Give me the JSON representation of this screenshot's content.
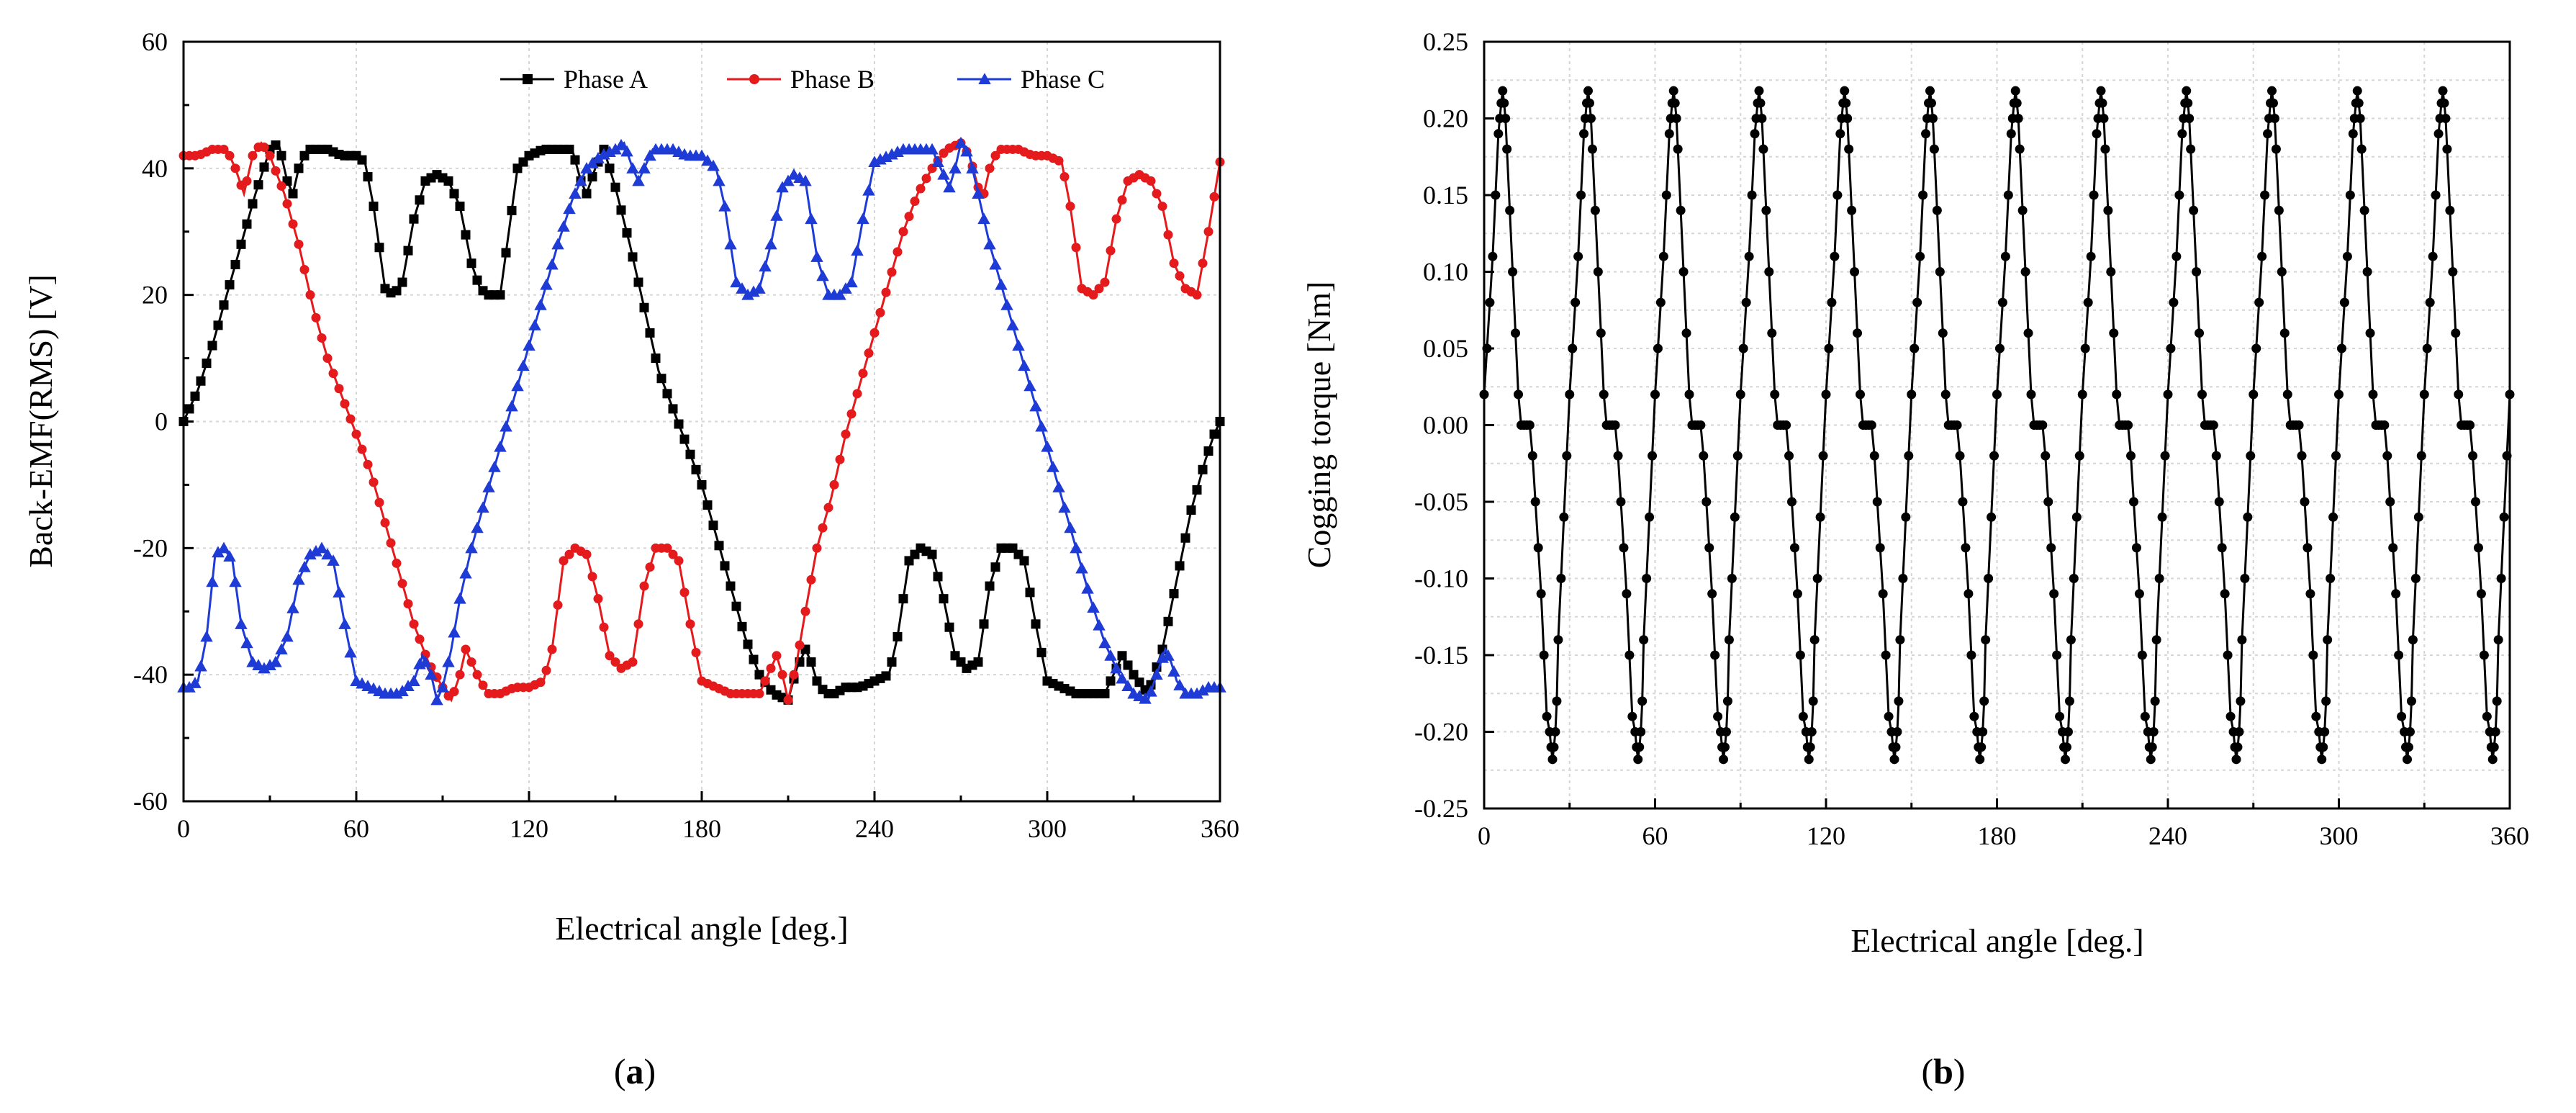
{
  "figure": {
    "caption_a": "a",
    "caption_b": "b"
  },
  "chart_data": [
    {
      "id": "a",
      "type": "line",
      "title": "",
      "xlabel": "Electrical angle [deg.]",
      "ylabel": "Back-EMF(RMS) [V]",
      "xlim": [
        0,
        360
      ],
      "ylim": [
        -60,
        60
      ],
      "xticks": [
        0,
        60,
        120,
        180,
        240,
        300,
        360
      ],
      "yticks": [
        -60,
        -40,
        -20,
        0,
        20,
        40,
        60
      ],
      "grid": true,
      "legend": "top-right, horizontal",
      "series": [
        {
          "name": "Phase A",
          "color": "#000000",
          "marker": "square",
          "x": [
            0,
            2,
            5,
            10,
            15,
            20,
            25,
            30,
            33,
            36,
            38,
            40,
            43,
            46,
            50,
            55,
            60,
            63,
            66,
            70,
            73,
            76,
            80,
            84,
            88,
            92,
            96,
            100,
            103,
            106,
            110,
            113,
            116,
            120,
            125,
            130,
            135,
            138,
            140,
            143,
            146,
            150,
            155,
            160,
            165,
            170,
            175,
            180,
            185,
            190,
            195,
            200,
            205,
            210,
            213,
            216,
            218,
            220,
            223,
            226,
            230,
            235,
            240,
            245,
            248,
            252,
            256,
            260,
            264,
            268,
            272,
            276,
            280,
            284,
            288,
            292,
            296,
            300,
            305,
            310,
            315,
            320,
            323,
            326,
            330,
            335,
            340,
            345,
            350,
            355,
            358,
            360
          ],
          "y": [
            0,
            2,
            5,
            12,
            20,
            28,
            36,
            43,
            44,
            38,
            36,
            40,
            43,
            43,
            43,
            42,
            42,
            41,
            34,
            21,
            20,
            22,
            32,
            38,
            39,
            38,
            34,
            25,
            21,
            20,
            20,
            30,
            40,
            42,
            43,
            43,
            43,
            38,
            36,
            40,
            43,
            37,
            28,
            18,
            8,
            2,
            -4,
            -10,
            -18,
            -26,
            -34,
            -40,
            -43,
            -44,
            -39,
            -36,
            -38,
            -41,
            -43,
            -43,
            -42,
            -42,
            -41,
            -40,
            -34,
            -22,
            -20,
            -21,
            -28,
            -37,
            -39,
            -38,
            -26,
            -20,
            -20,
            -22,
            -32,
            -41,
            -42,
            -43,
            -43,
            -43,
            -40,
            -37,
            -40,
            -43,
            -36,
            -25,
            -14,
            -6,
            -2,
            0
          ]
        },
        {
          "name": "Phase B",
          "color": "#e41a1c",
          "marker": "circle",
          "x": [
            0,
            2,
            5,
            10,
            15,
            18,
            21,
            24,
            27,
            30,
            35,
            40,
            45,
            50,
            55,
            60,
            65,
            70,
            75,
            80,
            85,
            90,
            93,
            96,
            98,
            100,
            103,
            106,
            110,
            115,
            120,
            125,
            128,
            132,
            136,
            140,
            144,
            148,
            152,
            156,
            160,
            164,
            168,
            172,
            176,
            180,
            185,
            190,
            195,
            200,
            203,
            206,
            208,
            210,
            213,
            216,
            220,
            225,
            230,
            235,
            240,
            245,
            250,
            255,
            260,
            265,
            270,
            273,
            276,
            278,
            280,
            283,
            286,
            290,
            295,
            300,
            305,
            308,
            312,
            316,
            320,
            324,
            328,
            332,
            336,
            340,
            344,
            348,
            352,
            356,
            360
          ],
          "y": [
            42,
            42,
            42,
            43,
            43,
            40,
            36,
            42,
            44,
            42,
            36,
            28,
            18,
            10,
            4,
            -2,
            -8,
            -16,
            -24,
            -32,
            -38,
            -42,
            -44,
            -40,
            -36,
            -38,
            -41,
            -43,
            -43,
            -42,
            -42,
            -41,
            -36,
            -22,
            -20,
            -21,
            -28,
            -37,
            -39,
            -38,
            -26,
            -20,
            -20,
            -22,
            -32,
            -41,
            -42,
            -43,
            -43,
            -43,
            -40,
            -37,
            -40,
            -44,
            -38,
            -30,
            -20,
            -12,
            -2,
            6,
            14,
            22,
            30,
            36,
            40,
            43,
            44,
            42,
            37,
            36,
            40,
            43,
            43,
            43,
            42,
            42,
            41,
            34,
            21,
            20,
            22,
            32,
            38,
            39,
            38,
            34,
            25,
            21,
            20,
            30,
            41
          ]
        },
        {
          "name": "Phase C",
          "color": "#1f3bd6",
          "marker": "triangle",
          "x": [
            0,
            2,
            5,
            8,
            11,
            14,
            17,
            20,
            24,
            28,
            32,
            36,
            40,
            44,
            48,
            52,
            56,
            60,
            65,
            70,
            75,
            80,
            83,
            86,
            88,
            90,
            93,
            96,
            100,
            105,
            110,
            115,
            120,
            125,
            130,
            135,
            140,
            145,
            150,
            153,
            156,
            158,
            160,
            163,
            166,
            170,
            175,
            180,
            185,
            188,
            192,
            196,
            200,
            204,
            208,
            212,
            216,
            220,
            224,
            228,
            232,
            236,
            240,
            245,
            250,
            255,
            260,
            263,
            266,
            268,
            270,
            273,
            276,
            280,
            285,
            290,
            295,
            300,
            305,
            310,
            315,
            320,
            325,
            330,
            335,
            338,
            341,
            343,
            345,
            348,
            352,
            356,
            360
          ],
          "y": [
            -42,
            -42,
            -41,
            -34,
            -21,
            -20,
            -22,
            -32,
            -38,
            -39,
            -38,
            -34,
            -25,
            -21,
            -20,
            -22,
            -32,
            -41,
            -42,
            -43,
            -43,
            -41,
            -37,
            -40,
            -44,
            -42,
            -36,
            -28,
            -20,
            -12,
            -4,
            4,
            12,
            20,
            28,
            35,
            40,
            42,
            43,
            44,
            40,
            38,
            40,
            43,
            43,
            43,
            42,
            42,
            40,
            34,
            22,
            20,
            21,
            28,
            37,
            39,
            38,
            26,
            20,
            20,
            22,
            32,
            41,
            42,
            43,
            43,
            43,
            40,
            37,
            40,
            44,
            42,
            36,
            28,
            20,
            12,
            4,
            -4,
            -12,
            -20,
            -28,
            -35,
            -40,
            -43,
            -44,
            -40,
            -36,
            -38,
            -41,
            -43,
            -43,
            -42,
            -42
          ]
        }
      ]
    },
    {
      "id": "b",
      "type": "line",
      "title": "",
      "xlabel": "Electrical angle [deg.]",
      "ylabel": "Cogging torque [Nm]",
      "xlim": [
        0,
        360
      ],
      "ylim": [
        -0.25,
        0.25
      ],
      "xticks": [
        0,
        60,
        120,
        180,
        240,
        300,
        360
      ],
      "yticks": [
        -0.25,
        -0.2,
        -0.15,
        -0.1,
        -0.05,
        0.0,
        0.05,
        0.1,
        0.15,
        0.2,
        0.25
      ],
      "grid": true,
      "period_deg": 30,
      "series": [
        {
          "name": "Cogging torque",
          "color": "#000000",
          "marker": "circle",
          "x": [
            0,
            1,
            2,
            3,
            4,
            5,
            5.5,
            6,
            6.5,
            7,
            7.5,
            8,
            9,
            10,
            11,
            12,
            13,
            14,
            15,
            16,
            17,
            18,
            19,
            20,
            21,
            22,
            23,
            23.5,
            24,
            24.5,
            25,
            25.5,
            26,
            27,
            28,
            29,
            30
          ],
          "y": [
            0.02,
            0.05,
            0.08,
            0.11,
            0.15,
            0.19,
            0.2,
            0.21,
            0.218,
            0.21,
            0.2,
            0.18,
            0.14,
            0.1,
            0.06,
            0.02,
            0.0,
            0.0,
            0.0,
            0.0,
            -0.02,
            -0.05,
            -0.08,
            -0.11,
            -0.15,
            -0.19,
            -0.2,
            -0.21,
            -0.218,
            -0.21,
            -0.2,
            -0.18,
            -0.14,
            -0.1,
            -0.06,
            -0.02,
            0.02
          ]
        }
      ]
    }
  ]
}
